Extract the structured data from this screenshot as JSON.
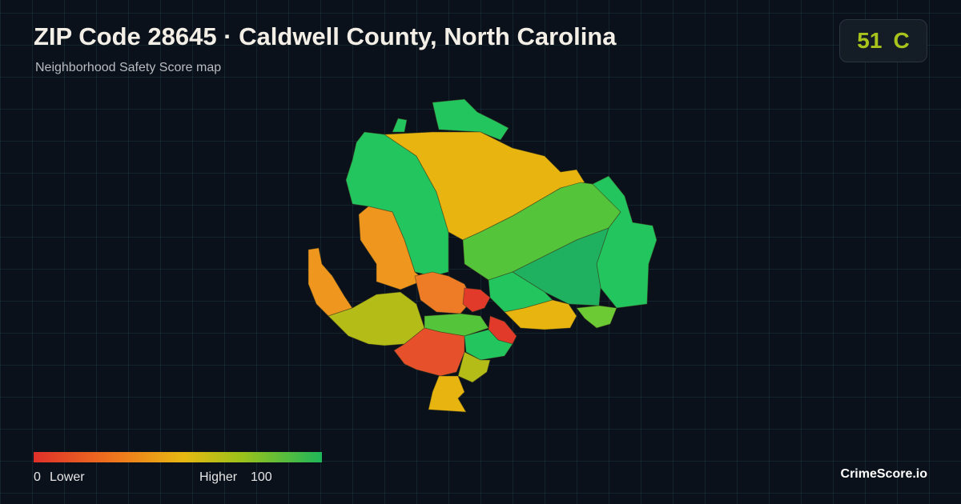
{
  "header": {
    "title": "ZIP Code 28645 · Caldwell County, North Carolina",
    "subtitle": "Neighborhood Safety Score map"
  },
  "score": {
    "value": 51,
    "grade": "C"
  },
  "legend": {
    "min": 0,
    "min_label": "Lower",
    "max_label": "Higher",
    "max": 100
  },
  "brand": "CrimeScore.io"
}
